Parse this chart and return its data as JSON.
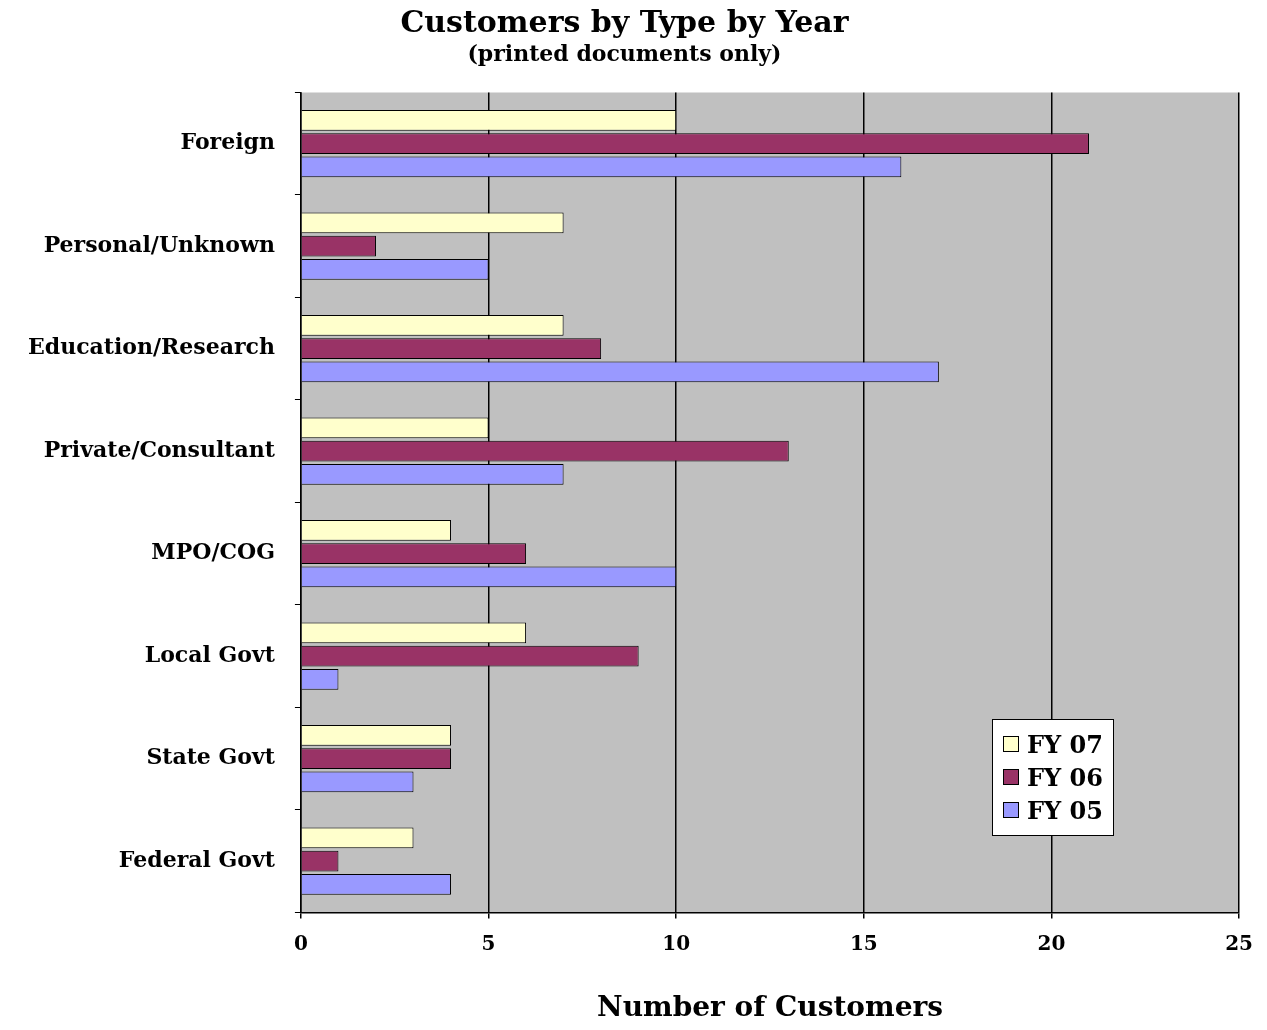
{
  "chart_data": {
    "type": "bar",
    "orientation": "horizontal",
    "title": "Customers by Type by Year",
    "subtitle": "(printed documents only)",
    "xlabel": "Number of Customers",
    "categories": [
      "Foreign",
      "Personal/Unknown",
      "Education/Research",
      "Private/Consultant",
      "MPO/COG",
      "Local Govt",
      "State Govt",
      "Federal Govt"
    ],
    "series": [
      {
        "name": "FY 07",
        "color": "#ffffcc",
        "values": [
          10,
          7,
          7,
          5,
          4,
          6,
          4,
          3
        ]
      },
      {
        "name": "FY 06",
        "color": "#993366",
        "values": [
          21,
          2,
          8,
          13,
          6,
          9,
          4,
          1
        ]
      },
      {
        "name": "FY 05",
        "color": "#9999ff",
        "values": [
          16,
          5,
          17,
          7,
          10,
          1,
          3,
          4
        ]
      }
    ],
    "xlim": [
      0,
      25
    ],
    "xticks": [
      0,
      5,
      10,
      15,
      20,
      25
    ],
    "grid": "x",
    "legend": "right"
  }
}
